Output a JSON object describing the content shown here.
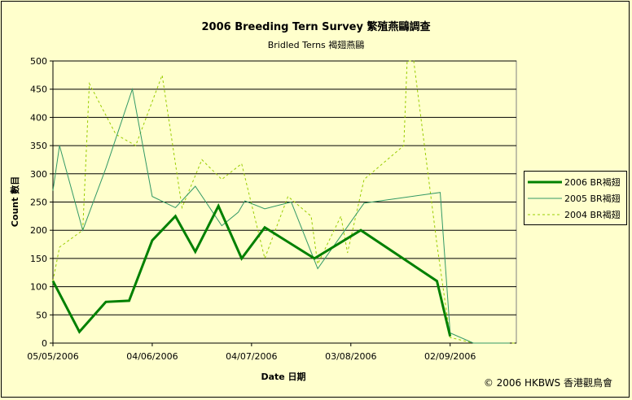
{
  "chart_data": {
    "type": "line",
    "title": "2006 Breeding Tern Survey 繁殖燕鷗調查",
    "subtitle": "Bridled Terns 褐翅燕鷗",
    "xlabel": "Date 日期",
    "ylabel": "Count 數目",
    "ylim": [
      0,
      500
    ],
    "yticks": [
      0,
      50,
      100,
      150,
      200,
      250,
      300,
      350,
      400,
      450,
      500
    ],
    "xlim": [
      "2006-05-05",
      "2006-09-22"
    ],
    "xticks": [
      "05/05/2006",
      "04/06/2006",
      "04/07/2006",
      "03/08/2006",
      "02/09/2006"
    ],
    "grid": "horizontal",
    "legend_position": "right",
    "series": [
      {
        "name": "2006 BR褐翅",
        "color": "#008000",
        "style": "thick-solid",
        "points": [
          [
            "2006-05-05",
            110
          ],
          [
            "2006-05-13",
            20
          ],
          [
            "2006-05-21",
            73
          ],
          [
            "2006-05-28",
            75
          ],
          [
            "2006-06-04",
            182
          ],
          [
            "2006-06-11",
            225
          ],
          [
            "2006-06-17",
            162
          ],
          [
            "2006-06-24",
            243
          ],
          [
            "2006-07-01",
            150
          ],
          [
            "2006-07-08",
            205
          ],
          [
            "2006-07-23",
            150
          ],
          [
            "2006-08-06",
            200
          ],
          [
            "2006-08-29",
            110
          ],
          [
            "2006-09-02",
            12
          ]
        ]
      },
      {
        "name": "2005 BR褐翅",
        "color": "#339966",
        "style": "thin-solid",
        "points": [
          [
            "2006-05-05",
            270
          ],
          [
            "2006-05-07",
            350
          ],
          [
            "2006-05-14",
            200
          ],
          [
            "2006-05-21",
            310
          ],
          [
            "2006-05-29",
            450
          ],
          [
            "2006-06-04",
            260
          ],
          [
            "2006-06-11",
            240
          ],
          [
            "2006-06-17",
            278
          ],
          [
            "2006-06-25",
            208
          ],
          [
            "2006-06-30",
            232
          ],
          [
            "2006-07-02",
            252
          ],
          [
            "2006-07-08",
            238
          ],
          [
            "2006-07-16",
            250
          ],
          [
            "2006-07-24",
            132
          ],
          [
            "2006-08-07",
            248
          ],
          [
            "2006-08-30",
            267
          ],
          [
            "2006-09-02",
            18
          ],
          [
            "2006-09-09",
            0
          ],
          [
            "2006-09-20",
            0
          ]
        ]
      },
      {
        "name": "2004 BR褐翅",
        "color": "#99cc00",
        "style": "dashed",
        "points": [
          [
            "2006-05-05",
            110
          ],
          [
            "2006-05-07",
            170
          ],
          [
            "2006-05-14",
            200
          ],
          [
            "2006-05-16",
            460
          ],
          [
            "2006-05-24",
            370
          ],
          [
            "2006-05-30",
            350
          ],
          [
            "2006-06-07",
            475
          ],
          [
            "2006-06-13",
            240
          ],
          [
            "2006-06-19",
            325
          ],
          [
            "2006-06-25",
            290
          ],
          [
            "2006-07-01",
            318
          ],
          [
            "2006-07-08",
            150
          ],
          [
            "2006-07-15",
            260
          ],
          [
            "2006-07-22",
            225
          ],
          [
            "2006-07-24",
            140
          ],
          [
            "2006-07-31",
            225
          ],
          [
            "2006-08-02",
            160
          ],
          [
            "2006-08-07",
            290
          ],
          [
            "2006-08-19",
            350
          ],
          [
            "2006-08-20",
            500
          ],
          [
            "2006-08-22",
            500
          ],
          [
            "2006-08-29",
            175
          ],
          [
            "2006-09-02",
            10
          ],
          [
            "2006-09-09",
            0
          ],
          [
            "2006-09-22",
            0
          ]
        ]
      }
    ]
  },
  "copyright": "© 2006 HKBWS 香港觀鳥會"
}
